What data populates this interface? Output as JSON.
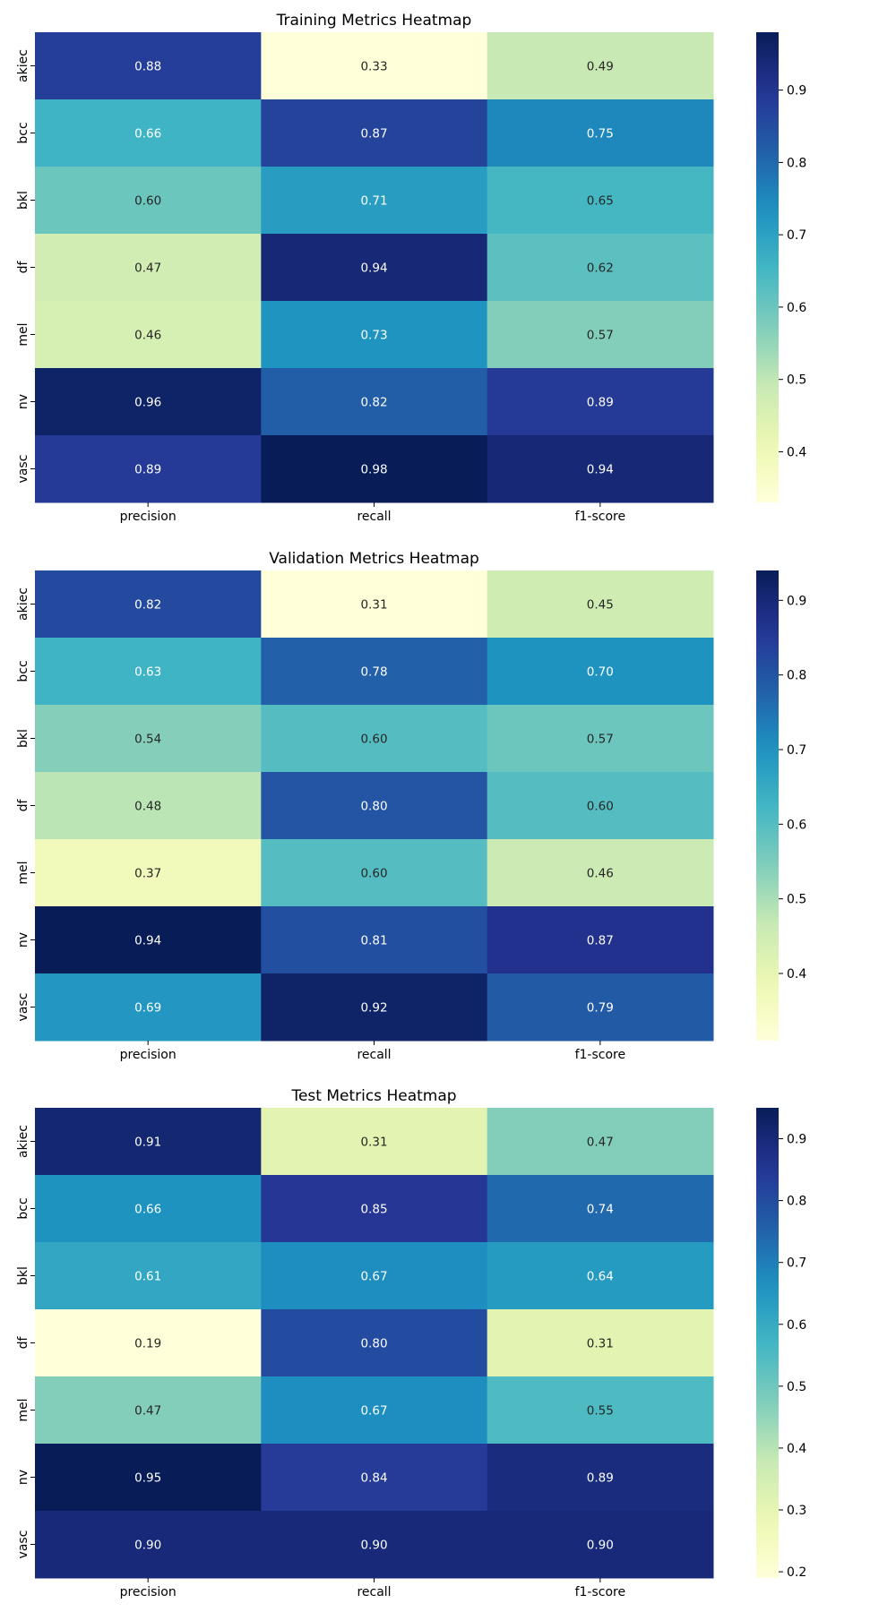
{
  "chart_data": [
    {
      "type": "heatmap",
      "title": "Training Metrics Heatmap",
      "columns": [
        "precision",
        "recall",
        "f1-score"
      ],
      "rows": [
        "akiec",
        "bcc",
        "bkl",
        "df",
        "mel",
        "nv",
        "vasc"
      ],
      "values": [
        [
          0.88,
          0.33,
          0.49
        ],
        [
          0.66,
          0.87,
          0.75
        ],
        [
          0.6,
          0.71,
          0.65
        ],
        [
          0.47,
          0.94,
          0.62
        ],
        [
          0.46,
          0.73,
          0.57
        ],
        [
          0.96,
          0.82,
          0.89
        ],
        [
          0.89,
          0.98,
          0.94
        ]
      ],
      "colormap": "YlGnBu",
      "vmin": 0.33,
      "vmax": 0.98,
      "colorbar_ticks": [
        0.4,
        0.5,
        0.6,
        0.7,
        0.8,
        0.9
      ]
    },
    {
      "type": "heatmap",
      "title": "Validation Metrics Heatmap",
      "columns": [
        "precision",
        "recall",
        "f1-score"
      ],
      "rows": [
        "akiec",
        "bcc",
        "bkl",
        "df",
        "mel",
        "nv",
        "vasc"
      ],
      "values": [
        [
          0.82,
          0.31,
          0.45
        ],
        [
          0.63,
          0.78,
          0.7
        ],
        [
          0.54,
          0.6,
          0.57
        ],
        [
          0.48,
          0.8,
          0.6
        ],
        [
          0.37,
          0.6,
          0.46
        ],
        [
          0.94,
          0.81,
          0.87
        ],
        [
          0.69,
          0.92,
          0.79
        ]
      ],
      "colormap": "YlGnBu",
      "vmin": 0.31,
      "vmax": 0.94,
      "colorbar_ticks": [
        0.4,
        0.5,
        0.6,
        0.7,
        0.8,
        0.9
      ]
    },
    {
      "type": "heatmap",
      "title": "Test Metrics Heatmap",
      "columns": [
        "precision",
        "recall",
        "f1-score"
      ],
      "rows": [
        "akiec",
        "bcc",
        "bkl",
        "df",
        "mel",
        "nv",
        "vasc"
      ],
      "values": [
        [
          0.91,
          0.31,
          0.47
        ],
        [
          0.66,
          0.85,
          0.74
        ],
        [
          0.61,
          0.67,
          0.64
        ],
        [
          0.19,
          0.8,
          0.31
        ],
        [
          0.47,
          0.67,
          0.55
        ],
        [
          0.95,
          0.84,
          0.89
        ],
        [
          0.9,
          0.9,
          0.9
        ]
      ],
      "colormap": "YlGnBu",
      "vmin": 0.19,
      "vmax": 0.95,
      "colorbar_ticks": [
        0.2,
        0.3,
        0.4,
        0.5,
        0.6,
        0.7,
        0.8,
        0.9
      ]
    }
  ]
}
